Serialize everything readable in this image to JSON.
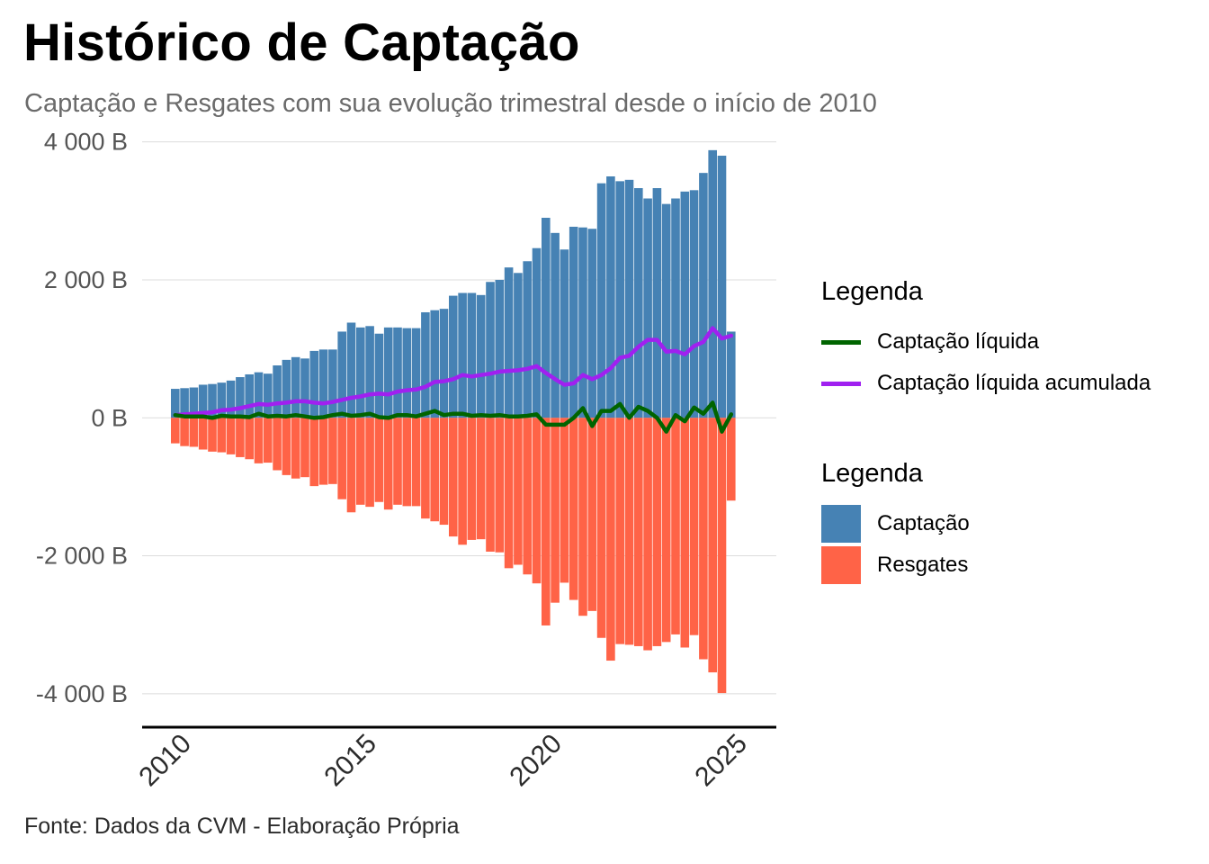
{
  "title": "Histórico de Captação",
  "subtitle": "Captação e Resgates com sua evolução trimestral desde o início de 2010",
  "caption": "Fonte: Dados da CVM - Elaboração Própria",
  "colors": {
    "captacao": "#4682B4",
    "resgates": "#FF6347",
    "liquida": "#006400",
    "acumulada": "#A020F0"
  },
  "legend_lines": {
    "title": "Legenda",
    "items": [
      {
        "label": "Captação líquida",
        "color": "#006400"
      },
      {
        "label": "Captação líquida acumulada",
        "color": "#A020F0"
      }
    ]
  },
  "legend_bars": {
    "title": "Legenda",
    "items": [
      {
        "label": "Captação",
        "color": "#4682B4"
      },
      {
        "label": "Resgates",
        "color": "#FF6347"
      }
    ]
  },
  "chart_data": {
    "type": "bar",
    "x_unit": "quarter",
    "x_start": "2010-Q1",
    "x_ticks": [
      2010,
      2015,
      2020,
      2025
    ],
    "y_ticks": [
      -4000,
      -2000,
      0,
      2000,
      4000
    ],
    "y_tick_labels": [
      "-4 000 B",
      "-2 000 B",
      "0 B",
      "2 000 B",
      "4 000 B"
    ],
    "ylim": [
      -4250,
      4100
    ],
    "grid": true,
    "legend_position": "right",
    "series": [
      {
        "name": "Captação",
        "type": "bar",
        "values": [
          420,
          430,
          440,
          480,
          490,
          510,
          540,
          590,
          630,
          660,
          640,
          760,
          840,
          880,
          860,
          970,
          990,
          990,
          1250,
          1380,
          1310,
          1330,
          1220,
          1310,
          1310,
          1300,
          1300,
          1530,
          1560,
          1580,
          1770,
          1810,
          1810,
          1780,
          1970,
          2000,
          2180,
          2100,
          2270,
          2460,
          2900,
          2680,
          2440,
          2770,
          2760,
          2740,
          3400,
          3500,
          3430,
          3450,
          3330,
          3180,
          3330,
          3100,
          3180,
          3280,
          3300,
          3550,
          3880,
          3800,
          1250
        ]
      },
      {
        "name": "Resgates",
        "type": "bar",
        "values": [
          -370,
          -410,
          -420,
          -460,
          -490,
          -500,
          -530,
          -570,
          -600,
          -660,
          -650,
          -760,
          -830,
          -880,
          -860,
          -990,
          -970,
          -960,
          -1180,
          -1370,
          -1260,
          -1290,
          -1220,
          -1330,
          -1260,
          -1280,
          -1280,
          -1460,
          -1500,
          -1550,
          -1720,
          -1840,
          -1770,
          -1760,
          -1940,
          -1950,
          -2180,
          -2130,
          -2270,
          -2400,
          -3010,
          -2680,
          -2390,
          -2640,
          -2870,
          -2800,
          -3190,
          -3520,
          -3280,
          -3290,
          -3310,
          -3370,
          -3310,
          -3250,
          -3140,
          -3330,
          -3150,
          -3500,
          -3690,
          -3990,
          -1200
        ]
      },
      {
        "name": "Captação líquida",
        "type": "line",
        "values": [
          40,
          20,
          20,
          20,
          0,
          30,
          20,
          20,
          10,
          60,
          20,
          30,
          20,
          40,
          20,
          0,
          10,
          40,
          60,
          30,
          40,
          60,
          10,
          0,
          40,
          40,
          20,
          60,
          100,
          40,
          60,
          60,
          30,
          40,
          30,
          40,
          20,
          20,
          30,
          50,
          -100,
          -100,
          -100,
          0,
          140,
          -120,
          100,
          100,
          200,
          0,
          160,
          100,
          0,
          -200,
          40,
          -50,
          150,
          60,
          220,
          -200,
          50
        ]
      },
      {
        "name": "Captação líquida acumulada",
        "type": "line",
        "values": [
          40,
          50,
          60,
          70,
          80,
          110,
          120,
          140,
          170,
          200,
          190,
          210,
          220,
          240,
          240,
          220,
          210,
          230,
          260,
          290,
          310,
          340,
          350,
          340,
          380,
          400,
          410,
          450,
          520,
          530,
          560,
          620,
          600,
          620,
          640,
          670,
          680,
          690,
          710,
          750,
          650,
          560,
          480,
          500,
          620,
          560,
          620,
          720,
          870,
          900,
          1030,
          1130,
          1130,
          960,
          970,
          920,
          1040,
          1100,
          1300,
          1150,
          1190
        ]
      }
    ]
  }
}
